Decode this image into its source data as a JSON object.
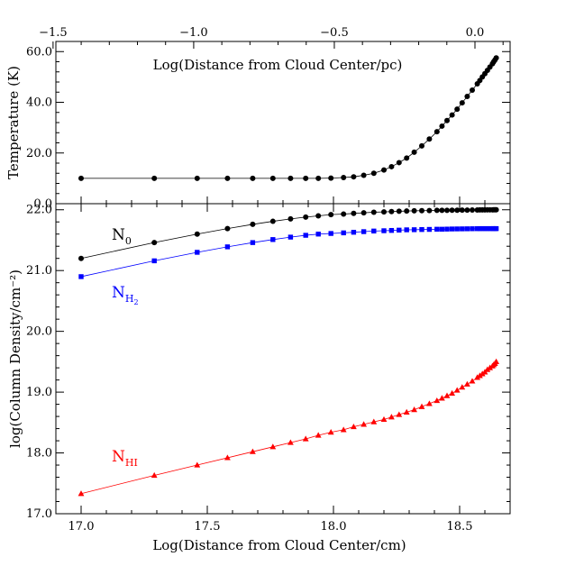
{
  "chart_data": [
    {
      "panel": "top",
      "type": "line",
      "xlabel_top": "Log(Distance from Cloud Center/pc)",
      "ylabel": "Temperature (K)",
      "xlim_top": [
        -1.49,
        0.125
      ],
      "xticks_top": [
        {
          "value": -1.5,
          "label": "−1.5"
        },
        {
          "value": -1.0,
          "label": "−1.0"
        },
        {
          "value": -0.5,
          "label": "−0.5"
        },
        {
          "value": 0.0,
          "label": "0.0"
        }
      ],
      "ylim": [
        0,
        64
      ],
      "yticks": [
        {
          "value": 0,
          "label": "0.0"
        },
        {
          "value": 20,
          "label": "20.0"
        },
        {
          "value": 40,
          "label": "40.0"
        },
        {
          "value": 60,
          "label": "60.0"
        }
      ],
      "series": [
        {
          "color": "#000000",
          "marker": "circle",
          "x": [
            17.0,
            17.29,
            17.46,
            17.58,
            17.68,
            17.76,
            17.83,
            17.89,
            17.94,
            17.99,
            18.04,
            18.08,
            18.12,
            18.16,
            18.2,
            18.23,
            18.26,
            18.29,
            18.32,
            18.35,
            18.38,
            18.41,
            18.43,
            18.45,
            18.47,
            18.49,
            18.51,
            18.53,
            18.55,
            18.57,
            18.58,
            18.59,
            18.6,
            18.61,
            18.62,
            18.63,
            18.635,
            18.64,
            18.645
          ],
          "y": [
            10.0,
            10.0,
            10.0,
            10.0,
            10.0,
            10.0,
            10.0,
            10.0,
            10.0,
            10.1,
            10.3,
            10.6,
            11.2,
            12.0,
            13.3,
            14.6,
            16.2,
            18.0,
            20.3,
            22.8,
            25.5,
            28.4,
            30.6,
            32.8,
            35.0,
            37.3,
            39.8,
            42.3,
            44.8,
            47.3,
            48.6,
            50.0,
            51.3,
            52.6,
            53.9,
            55.2,
            56.0,
            56.7,
            57.5
          ]
        }
      ]
    },
    {
      "panel": "bottom",
      "type": "line",
      "xlabel": "Log(Distance from Cloud Center/cm)",
      "ylabel": "log(Column Density/cm⁻²)",
      "xlim": [
        16.9,
        18.7
      ],
      "xticks": [
        {
          "value": 17.0,
          "label": "17.0"
        },
        {
          "value": 17.5,
          "label": "17.5"
        },
        {
          "value": 18.0,
          "label": "18.0"
        },
        {
          "value": 18.5,
          "label": "18.5"
        }
      ],
      "ylim": [
        17.0,
        22.1
      ],
      "yticks": [
        {
          "value": 17.0,
          "label": "17.0"
        },
        {
          "value": 18.0,
          "label": "18.0"
        },
        {
          "value": 19.0,
          "label": "19.0"
        },
        {
          "value": 20.0,
          "label": "20.0"
        },
        {
          "value": 21.0,
          "label": "21.0"
        },
        {
          "value": 22.0,
          "label": "22.0"
        }
      ],
      "series": [
        {
          "label_main": "N",
          "label_sub": "0",
          "color": "#000000",
          "marker": "circle",
          "x": [
            17.0,
            17.29,
            17.46,
            17.58,
            17.68,
            17.76,
            17.83,
            17.89,
            17.94,
            17.99,
            18.04,
            18.08,
            18.12,
            18.16,
            18.2,
            18.23,
            18.26,
            18.29,
            18.32,
            18.35,
            18.38,
            18.41,
            18.43,
            18.45,
            18.47,
            18.49,
            18.51,
            18.53,
            18.55,
            18.57,
            18.58,
            18.59,
            18.6,
            18.61,
            18.62,
            18.63,
            18.635,
            18.64,
            18.645
          ],
          "y": [
            21.2,
            21.46,
            21.6,
            21.69,
            21.76,
            21.81,
            21.85,
            21.88,
            21.9,
            21.92,
            21.93,
            21.94,
            21.95,
            21.96,
            21.965,
            21.97,
            21.975,
            21.98,
            21.983,
            21.985,
            21.987,
            21.99,
            21.99,
            21.99,
            21.992,
            21.993,
            21.994,
            21.995,
            21.996,
            21.997,
            21.998,
            21.998,
            21.998,
            21.999,
            21.999,
            21.999,
            22.0,
            22.0,
            22.0
          ]
        },
        {
          "label_main": "N",
          "label_sub": "H",
          "label_subsub": "2",
          "color": "#0000ff",
          "marker": "square",
          "x": [
            17.0,
            17.29,
            17.46,
            17.58,
            17.68,
            17.76,
            17.83,
            17.89,
            17.94,
            17.99,
            18.04,
            18.08,
            18.12,
            18.16,
            18.2,
            18.23,
            18.26,
            18.29,
            18.32,
            18.35,
            18.38,
            18.41,
            18.43,
            18.45,
            18.47,
            18.49,
            18.51,
            18.53,
            18.55,
            18.57,
            18.58,
            18.59,
            18.6,
            18.61,
            18.62,
            18.63,
            18.635,
            18.64,
            18.645
          ],
          "y": [
            20.9,
            21.16,
            21.3,
            21.39,
            21.46,
            21.51,
            21.55,
            21.58,
            21.6,
            21.61,
            21.62,
            21.63,
            21.64,
            21.65,
            21.655,
            21.66,
            21.665,
            21.67,
            21.672,
            21.675,
            21.677,
            21.68,
            21.68,
            21.682,
            21.684,
            21.685,
            21.686,
            21.687,
            21.688,
            21.689,
            21.69,
            21.69,
            21.69,
            21.69,
            21.69,
            21.69,
            21.69,
            21.69,
            21.69
          ]
        },
        {
          "label_main": "N",
          "label_sub": "HI",
          "color": "#ff0000",
          "marker": "triangle",
          "x": [
            17.0,
            17.29,
            17.46,
            17.58,
            17.68,
            17.76,
            17.83,
            17.89,
            17.94,
            17.99,
            18.04,
            18.08,
            18.12,
            18.16,
            18.2,
            18.23,
            18.26,
            18.29,
            18.32,
            18.35,
            18.38,
            18.41,
            18.43,
            18.45,
            18.47,
            18.49,
            18.51,
            18.53,
            18.55,
            18.57,
            18.58,
            18.59,
            18.6,
            18.61,
            18.62,
            18.63,
            18.635,
            18.64,
            18.645
          ],
          "y": [
            17.33,
            17.63,
            17.8,
            17.92,
            18.02,
            18.1,
            18.17,
            18.23,
            18.29,
            18.34,
            18.38,
            18.43,
            18.47,
            18.51,
            18.55,
            18.59,
            18.63,
            18.67,
            18.71,
            18.76,
            18.81,
            18.86,
            18.9,
            18.94,
            18.98,
            19.03,
            19.08,
            19.13,
            19.18,
            19.24,
            19.27,
            19.3,
            19.33,
            19.37,
            19.4,
            19.43,
            19.45,
            19.47,
            19.5
          ]
        }
      ]
    }
  ]
}
